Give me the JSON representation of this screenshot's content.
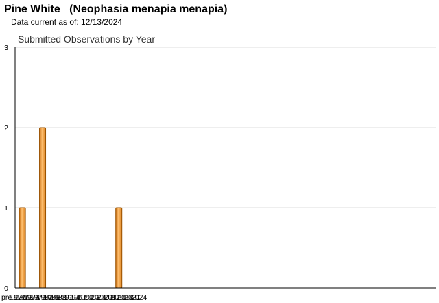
{
  "header": {
    "title": "Pine White   (Neophasia menapia menapia)",
    "data_current_label": "Data current as of: 12/13/2024"
  },
  "chart_data": {
    "type": "bar",
    "title": "Submitted Observations by Year",
    "xlabel": "",
    "ylabel": "",
    "categories": [
      "pre 1970",
      "1970",
      "1971",
      "1972",
      "1973",
      "1974",
      "1975",
      "1976",
      "1977",
      "1978",
      "1979",
      "1980",
      "1981",
      "1982",
      "1983",
      "1984",
      "1985",
      "1986",
      "1987",
      "1988",
      "1989",
      "1990",
      "1991",
      "1992",
      "1993",
      "1994",
      "1995",
      "1996",
      "1997",
      "1998",
      "1999",
      "2000",
      "2001",
      "2002",
      "2003",
      "2004",
      "2005",
      "2006",
      "2007",
      "2008",
      "2009",
      "2010",
      "2011",
      "2012",
      "2013",
      "2014",
      "2015",
      "2016",
      "2017",
      "2018",
      "2019",
      "2020",
      "2021",
      "2022",
      "2023",
      "2024"
    ],
    "values": [
      0,
      0,
      0,
      1,
      0,
      0,
      0,
      0,
      0,
      0,
      0,
      0,
      2,
      0,
      0,
      0,
      0,
      0,
      0,
      0,
      0,
      0,
      0,
      0,
      0,
      0,
      0,
      0,
      0,
      0,
      0,
      0,
      0,
      0,
      0,
      0,
      0,
      0,
      0,
      0,
      0,
      0,
      0,
      0,
      0,
      0,
      1,
      0,
      0,
      0,
      0,
      0,
      0,
      0,
      0,
      0
    ],
    "x_tick_labels": [
      "pre 1970",
      "1970",
      "1973",
      "1976",
      "1979",
      "1982",
      "1985",
      "1988",
      "1991",
      "1994",
      "1997",
      "2000",
      "2003",
      "2006",
      "2009",
      "2012",
      "2015",
      "2018",
      "2021",
      "2024"
    ],
    "y_ticks": [
      0,
      1,
      2,
      3
    ],
    "ylim": [
      0,
      3
    ],
    "grid": true,
    "colors": {
      "bar_fill": "#f0a040",
      "bar_stroke": "#9a5200",
      "grid": "#dddddd",
      "axis": "#000000"
    }
  }
}
